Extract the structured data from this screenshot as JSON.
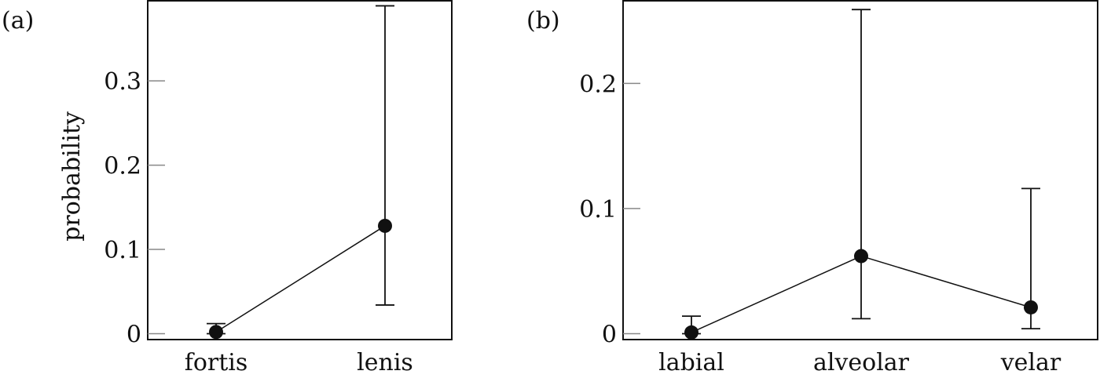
{
  "chart_data": [
    {
      "type": "line",
      "panel_label": "(a)",
      "ylabel": "probability",
      "categories": [
        "fortis",
        "lenis"
      ],
      "values": [
        0.002,
        0.128
      ],
      "lower": [
        0.0,
        0.034
      ],
      "upper": [
        0.012,
        0.389
      ],
      "ylim": [
        0,
        0.395
      ],
      "yticks": [
        0,
        0.1,
        0.2,
        0.3
      ],
      "ytick_labels": [
        "0",
        "0.1",
        "0.2",
        "0.3"
      ],
      "grid": false
    },
    {
      "type": "line",
      "panel_label": "(b)",
      "ylabel": "",
      "categories": [
        "labial",
        "alveolar",
        "velar"
      ],
      "values": [
        0.001,
        0.062,
        0.021
      ],
      "lower": [
        0.0,
        0.012,
        0.004
      ],
      "upper": [
        0.014,
        0.259,
        0.116
      ],
      "ylim": [
        0,
        0.266
      ],
      "yticks": [
        0,
        0.1,
        0.2
      ],
      "ytick_labels": [
        "0",
        "0.1",
        "0.2"
      ],
      "grid": false
    }
  ]
}
